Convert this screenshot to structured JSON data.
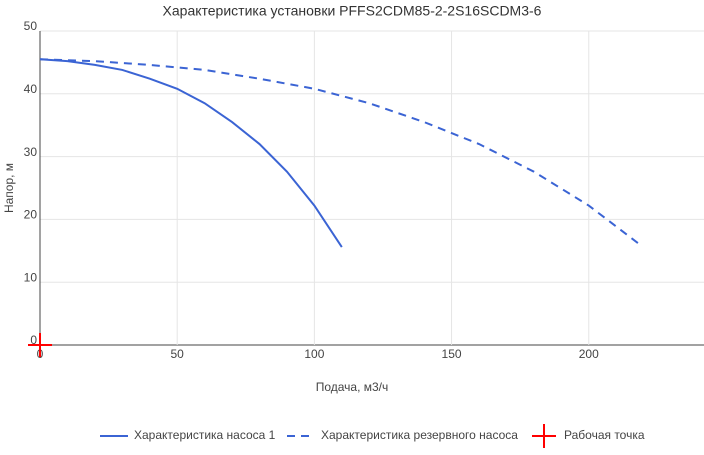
{
  "chart_data": {
    "type": "line",
    "title": "Характеристика установки PFFS2CDM85-2-2S16SCDM3-6",
    "x_label": "Подача, м3/ч",
    "y_label": "Напор, м",
    "xlim": [
      0,
      242
    ],
    "ylim": [
      0,
      50
    ],
    "xticks": [
      0,
      50,
      100,
      150,
      200
    ],
    "yticks": [
      0,
      10,
      20,
      30,
      40,
      50
    ],
    "grid": true,
    "legend": "bottom",
    "series": [
      {
        "name": "Характеристика насоса 1",
        "color": "#3b64d4",
        "dash": false,
        "marker": false,
        "x": [
          0,
          10,
          20,
          30,
          40,
          50,
          60,
          70,
          80,
          90,
          100,
          110
        ],
        "values": [
          45.5,
          45.2,
          44.6,
          43.8,
          42.4,
          40.8,
          38.5,
          35.5,
          32,
          27.6,
          22.2,
          15.6
        ]
      },
      {
        "name": "Характеристика резервного насоса",
        "color": "#3b64d4",
        "dash": true,
        "marker": false,
        "x": [
          0,
          20,
          40,
          60,
          80,
          100,
          120,
          140,
          160,
          180,
          200,
          218
        ],
        "values": [
          45.5,
          45.2,
          44.6,
          43.8,
          42.4,
          40.8,
          38.5,
          35.5,
          32,
          27.6,
          22.2,
          16.2
        ]
      },
      {
        "name": "Рабочая точка",
        "color": "#ff0000",
        "dash": false,
        "marker": true,
        "x": [
          0
        ],
        "values": [
          0
        ]
      }
    ]
  }
}
